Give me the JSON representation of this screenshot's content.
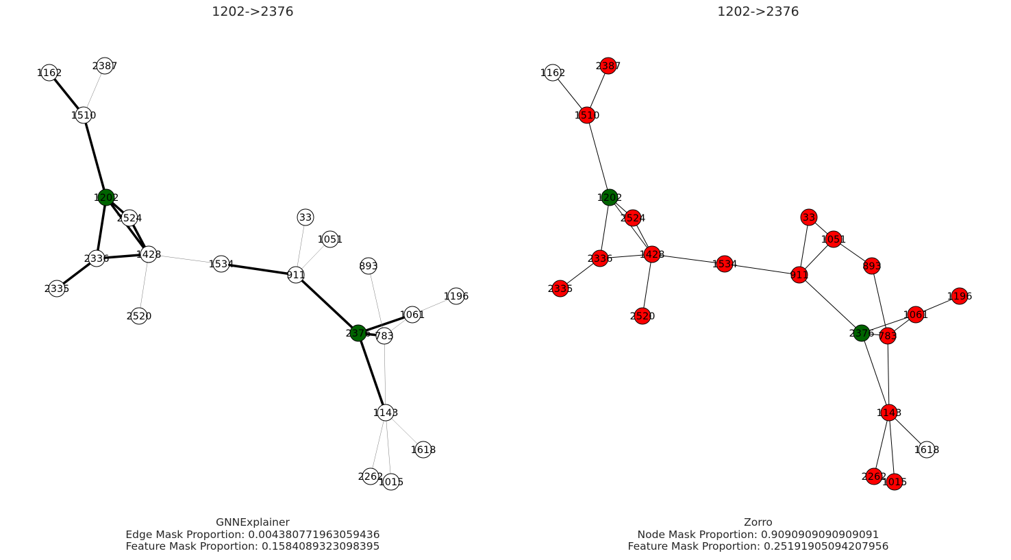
{
  "panels": [
    {
      "title": "1202->2376",
      "caption": [
        "GNNExplainer",
        "Edge Mask Proportion: 0.004380771963059436",
        "Feature Mask Proportion: 0.1584089323098395"
      ],
      "colors": {
        "1202": "#006400",
        "2376": "#006400"
      },
      "edges": [
        [
          "1162",
          "1510",
          3.5
        ],
        [
          "2387",
          "1510",
          0.5
        ],
        [
          "1510",
          "1202",
          3.5
        ],
        [
          "1202",
          "2524",
          3.5
        ],
        [
          "1202",
          "1428",
          3.5
        ],
        [
          "1202",
          "2336",
          3.5
        ],
        [
          "2524",
          "1428",
          3.5
        ],
        [
          "2336",
          "1428",
          3.5
        ],
        [
          "2336",
          "2335",
          3.5
        ],
        [
          "1428",
          "2520",
          0.5
        ],
        [
          "1428",
          "1534",
          0.5
        ],
        [
          "1534",
          "911",
          3.5
        ],
        [
          "911",
          "33",
          0.5
        ],
        [
          "911",
          "1051",
          0.5
        ],
        [
          "911",
          "2376",
          3.5
        ],
        [
          "2376",
          "783",
          3.5
        ],
        [
          "2376",
          "1061",
          3.5
        ],
        [
          "2376",
          "1143",
          3.5
        ],
        [
          "893",
          "783",
          0.5
        ],
        [
          "1061",
          "1196",
          0.5
        ],
        [
          "1061",
          "783",
          0.5
        ],
        [
          "783",
          "1143",
          0.5
        ],
        [
          "1143",
          "1618",
          0.5
        ],
        [
          "1143",
          "2262",
          0.5
        ],
        [
          "1143",
          "1015",
          0.5
        ]
      ]
    },
    {
      "title": "1202->2376",
      "caption": [
        "Zorro",
        "Node Mask Proportion: 0.9090909090909091",
        "Feature Mask Proportion: 0.25191905094207956"
      ],
      "colors": {
        "2387": "#ff0000",
        "1510": "#ff0000",
        "1202": "#006400",
        "2524": "#ff0000",
        "2336": "#ff0000",
        "1428": "#ff0000",
        "2335": "#ff0000",
        "2520": "#ff0000",
        "1534": "#ff0000",
        "33": "#ff0000",
        "1051": "#ff0000",
        "911": "#ff0000",
        "893": "#ff0000",
        "2376": "#006400",
        "783": "#ff0000",
        "1061": "#ff0000",
        "1196": "#ff0000",
        "1143": "#ff0000",
        "2262": "#ff0000",
        "1015": "#ff0000"
      },
      "edges": [
        [
          "1162",
          "1510",
          1
        ],
        [
          "2387",
          "1510",
          1
        ],
        [
          "1510",
          "1202",
          1
        ],
        [
          "1202",
          "2524",
          1
        ],
        [
          "1202",
          "1428",
          1
        ],
        [
          "1202",
          "2336",
          1
        ],
        [
          "2524",
          "1428",
          1
        ],
        [
          "2336",
          "1428",
          1
        ],
        [
          "2336",
          "2335",
          1
        ],
        [
          "1428",
          "2520",
          1
        ],
        [
          "1428",
          "1534",
          1
        ],
        [
          "1534",
          "911",
          1
        ],
        [
          "911",
          "33",
          1
        ],
        [
          "911",
          "1051",
          1
        ],
        [
          "33",
          "1051",
          1
        ],
        [
          "1051",
          "893",
          1
        ],
        [
          "911",
          "2376",
          1
        ],
        [
          "2376",
          "783",
          1
        ],
        [
          "2376",
          "1061",
          1
        ],
        [
          "2376",
          "1143",
          1
        ],
        [
          "893",
          "783",
          1
        ],
        [
          "1061",
          "1196",
          1
        ],
        [
          "1061",
          "783",
          1
        ],
        [
          "783",
          "1143",
          1
        ],
        [
          "1143",
          "1618",
          1
        ],
        [
          "1143",
          "2262",
          1
        ],
        [
          "1143",
          "1015",
          1
        ]
      ]
    }
  ],
  "nodes": [
    "1162",
    "2387",
    "1510",
    "1202",
    "2524",
    "2336",
    "1428",
    "2335",
    "2520",
    "1534",
    "33",
    "1051",
    "911",
    "893",
    "2376",
    "783",
    "1061",
    "1196",
    "1143",
    "1618",
    "2262",
    "1015"
  ],
  "node_default_color": "#ffffff"
}
